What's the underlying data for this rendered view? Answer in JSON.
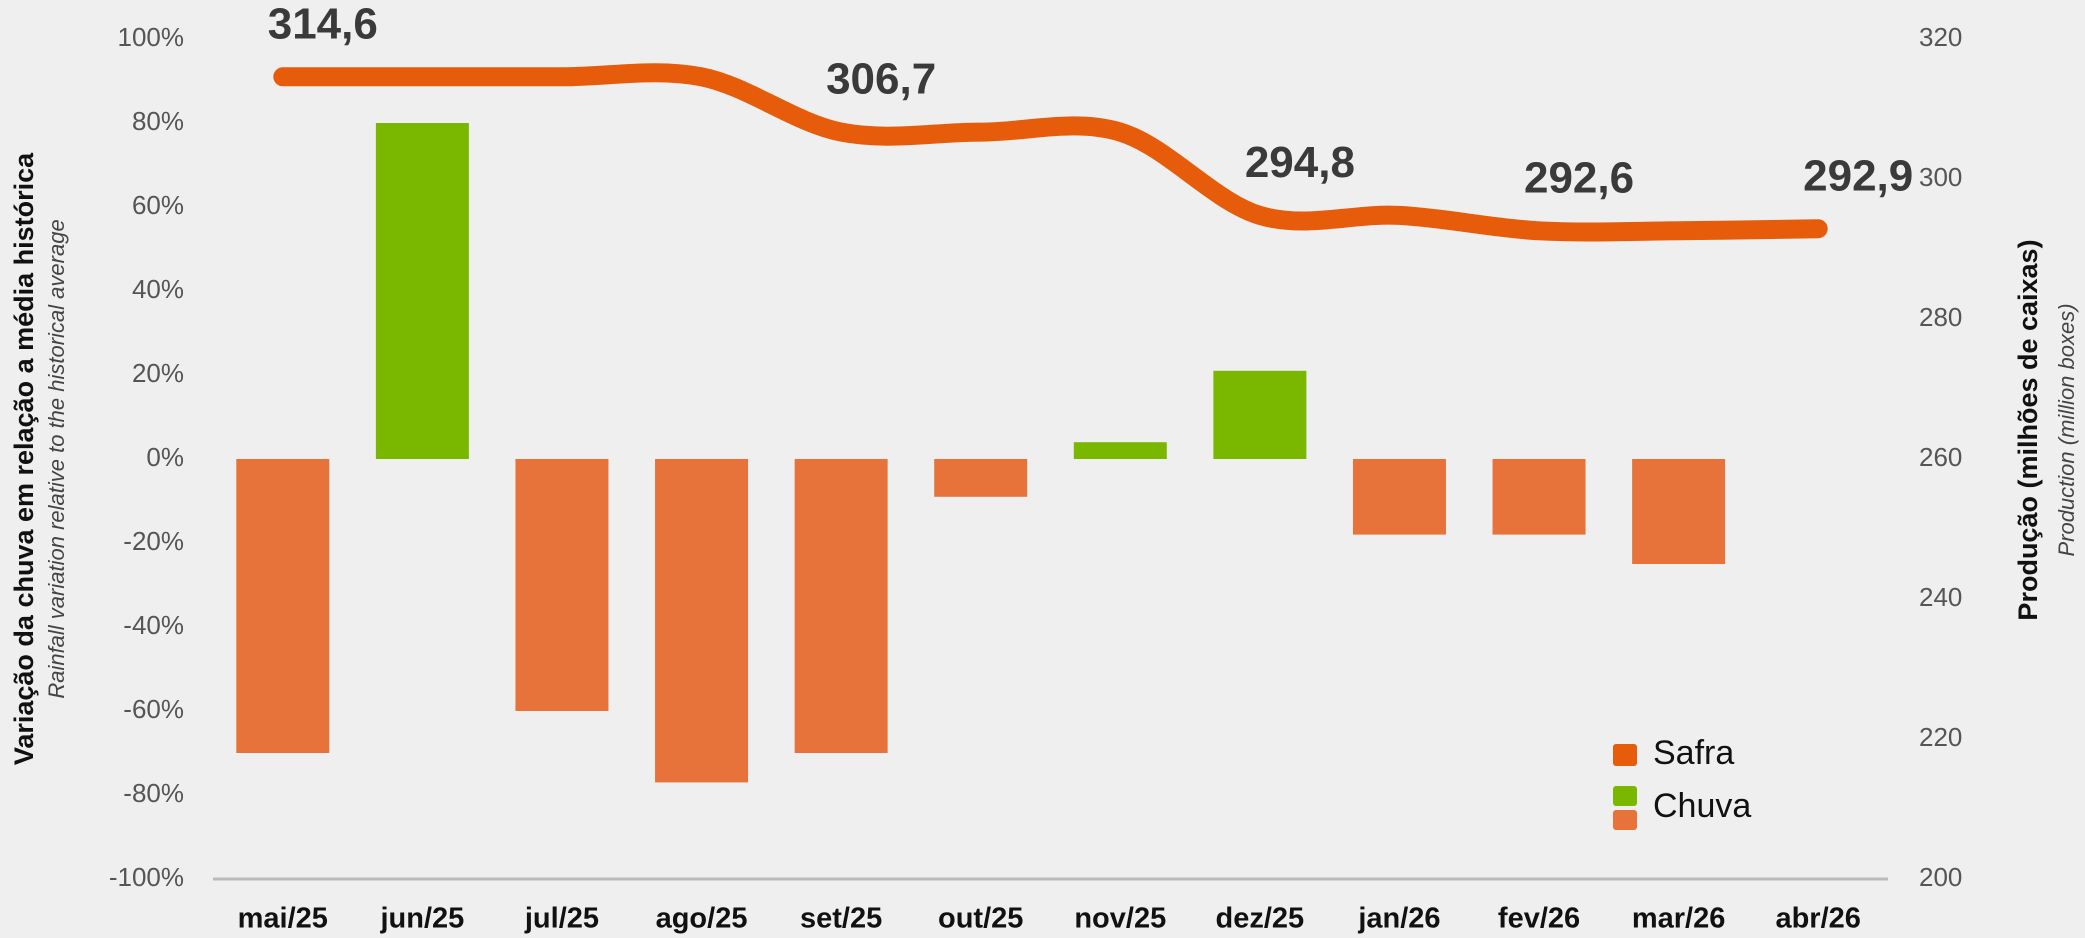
{
  "chart_data": {
    "type": "bar_line",
    "y_axis_label": "Variação da chuva em relação a média histórica",
    "y_axis_sublabel": "Rainfall variation relative to the historical average",
    "y2_axis_label": "Produção (milhões de caixas)",
    "y2_axis_sublabel": "Production (million boxes)",
    "categories": [
      "mai/25",
      "jun/25",
      "jul/25",
      "ago/25",
      "set/25",
      "out/25",
      "nov/25",
      "dez/25",
      "jan/26",
      "fev/26",
      "mar/26",
      "abr/26"
    ],
    "series": [
      {
        "name": "Safra",
        "type": "line",
        "axis": "y2",
        "color": "#e65c0a",
        "values": [
          314.6,
          314.6,
          314.6,
          314.6,
          306.7,
          306.7,
          306.7,
          294.8,
          294.8,
          292.6,
          292.6,
          292.9
        ],
        "value_labels": [
          "314,6",
          null,
          null,
          null,
          "306,7",
          null,
          null,
          "294,8",
          null,
          "292,6",
          null,
          "292,9"
        ]
      },
      {
        "name": "Chuva",
        "type": "bar",
        "color": "#7ab800",
        "negative_color": "#e8733a",
        "values": [
          -70,
          80,
          -60,
          -77,
          -70,
          -9,
          4,
          21,
          -18,
          -18,
          -25,
          null
        ]
      }
    ],
    "ylim": [
      -100,
      100
    ],
    "yticks": [
      {
        "value": -100,
        "label": "-100%"
      },
      {
        "value": -80,
        "label": "-80%"
      },
      {
        "value": -60,
        "label": "-60%"
      },
      {
        "value": -40,
        "label": "-40%"
      },
      {
        "value": -20,
        "label": "-20%"
      },
      {
        "value": 0,
        "label": "0%"
      },
      {
        "value": 20,
        "label": "20%"
      },
      {
        "value": 40,
        "label": "40%"
      },
      {
        "value": 60,
        "label": "60%"
      },
      {
        "value": 80,
        "label": "80%"
      },
      {
        "value": 100,
        "label": "100%"
      }
    ],
    "y2lim": [
      200,
      320
    ],
    "y2ticks": [
      200,
      220,
      240,
      260,
      280,
      300,
      320
    ],
    "legend": "bottom-right"
  }
}
